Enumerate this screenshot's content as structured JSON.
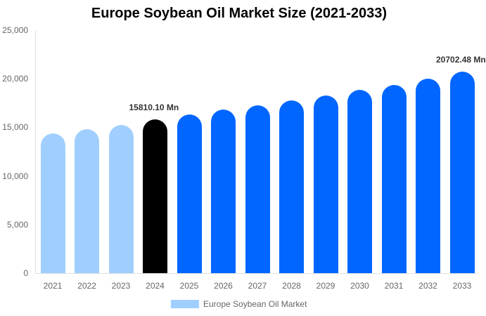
{
  "chart_data": {
    "type": "bar",
    "title": "Europe Soybean Oil Market Size (2021-2033)",
    "xlabel": "",
    "ylabel": "",
    "ylim": [
      0,
      25000
    ],
    "yticks": [
      "0",
      "5,000",
      "10,000",
      "15,000",
      "20,000",
      "25,000"
    ],
    "grid": false,
    "legend_position": "bottom",
    "categories": [
      "2021",
      "2022",
      "2023",
      "2024",
      "2025",
      "2026",
      "2027",
      "2028",
      "2029",
      "2030",
      "2031",
      "2032",
      "2033"
    ],
    "series": [
      {
        "name": "Europe Soybean Oil Market",
        "values": [
          14380,
          14800,
          15250,
          15810.1,
          16300,
          16800,
          17300,
          17800,
          18300,
          18850,
          19400,
          20000,
          20702.48
        ]
      }
    ],
    "bar_colors": [
      "#a0cfff",
      "#a0cfff",
      "#a0cfff",
      "#000000",
      "#0066ff",
      "#0066ff",
      "#0066ff",
      "#0066ff",
      "#0066ff",
      "#0066ff",
      "#0066ff",
      "#0066ff",
      "#0066ff"
    ],
    "annotations": [
      {
        "category": "2024",
        "text": "15810.10 Mn"
      },
      {
        "category": "2033",
        "text": "20702.48 Mn"
      }
    ]
  },
  "legend": {
    "label": "Europe Soybean Oil Market",
    "color": "#a0cfff"
  }
}
